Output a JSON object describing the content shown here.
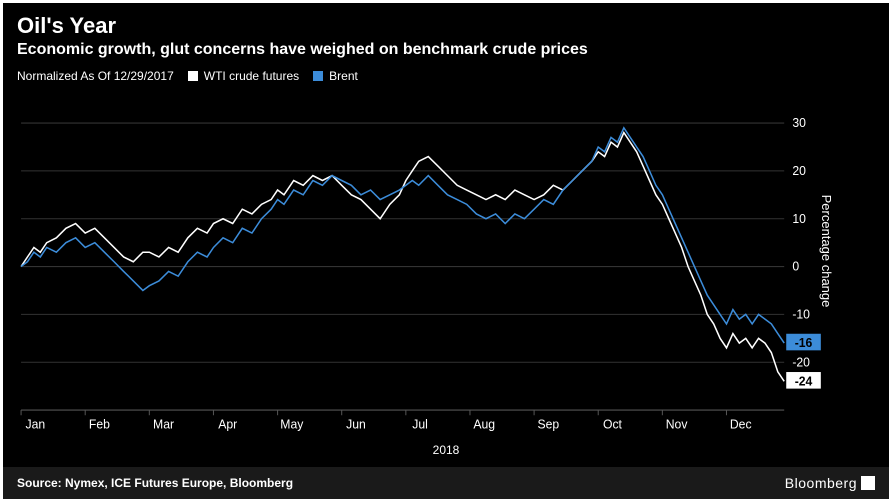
{
  "header": {
    "title": "Oil's Year",
    "subtitle": "Economic growth, glut concerns have weighed on benchmark crude prices"
  },
  "legend": {
    "normalized_label": "Normalized As Of 12/29/2017",
    "series": [
      {
        "key": "wti",
        "label": "WTI crude futures",
        "color": "#ffffff"
      },
      {
        "key": "brent",
        "label": "Brent",
        "color": "#3c8cd9"
      }
    ]
  },
  "chart": {
    "type": "line",
    "background_color": "#000000",
    "grid_color": "#333333",
    "axis_color": "#555555",
    "line_width": 1.5,
    "ylabel": "Percentage change",
    "xlabel": "2018",
    "label_fontsize": 13,
    "tick_fontsize": 12,
    "ylim": [
      -30,
      35
    ],
    "yticks": [
      -20,
      -10,
      0,
      10,
      20,
      30
    ],
    "xticks": [
      "Jan",
      "Feb",
      "Mar",
      "Apr",
      "May",
      "Jun",
      "Jul",
      "Aug",
      "Sep",
      "Oct",
      "Nov",
      "Dec"
    ],
    "x_domain": [
      0,
      11.9
    ],
    "end_values": {
      "wti": -24,
      "brent": -16
    },
    "end_flag_bg": {
      "wti": "#ffffff",
      "brent": "#3c8cd9"
    },
    "series_data": {
      "wti": [
        [
          0.0,
          0
        ],
        [
          0.1,
          2
        ],
        [
          0.2,
          4
        ],
        [
          0.3,
          3
        ],
        [
          0.4,
          5
        ],
        [
          0.55,
          6
        ],
        [
          0.7,
          8
        ],
        [
          0.85,
          9
        ],
        [
          1.0,
          7
        ],
        [
          1.15,
          8
        ],
        [
          1.3,
          6
        ],
        [
          1.45,
          4
        ],
        [
          1.6,
          2
        ],
        [
          1.75,
          1
        ],
        [
          1.9,
          3
        ],
        [
          2.0,
          3
        ],
        [
          2.15,
          2
        ],
        [
          2.3,
          4
        ],
        [
          2.45,
          3
        ],
        [
          2.6,
          6
        ],
        [
          2.75,
          8
        ],
        [
          2.9,
          7
        ],
        [
          3.0,
          9
        ],
        [
          3.15,
          10
        ],
        [
          3.3,
          9
        ],
        [
          3.45,
          12
        ],
        [
          3.6,
          11
        ],
        [
          3.75,
          13
        ],
        [
          3.9,
          14
        ],
        [
          4.0,
          16
        ],
        [
          4.1,
          15
        ],
        [
          4.25,
          18
        ],
        [
          4.4,
          17
        ],
        [
          4.55,
          19
        ],
        [
          4.7,
          18
        ],
        [
          4.85,
          19
        ],
        [
          5.0,
          17
        ],
        [
          5.15,
          15
        ],
        [
          5.3,
          14
        ],
        [
          5.45,
          12
        ],
        [
          5.6,
          10
        ],
        [
          5.75,
          13
        ],
        [
          5.9,
          15
        ],
        [
          6.0,
          18
        ],
        [
          6.1,
          20
        ],
        [
          6.2,
          22
        ],
        [
          6.35,
          23
        ],
        [
          6.5,
          21
        ],
        [
          6.65,
          19
        ],
        [
          6.8,
          17
        ],
        [
          6.95,
          16
        ],
        [
          7.1,
          15
        ],
        [
          7.25,
          14
        ],
        [
          7.4,
          15
        ],
        [
          7.55,
          14
        ],
        [
          7.7,
          16
        ],
        [
          7.85,
          15
        ],
        [
          8.0,
          14
        ],
        [
          8.15,
          15
        ],
        [
          8.3,
          17
        ],
        [
          8.45,
          16
        ],
        [
          8.6,
          18
        ],
        [
          8.75,
          20
        ],
        [
          8.9,
          22
        ],
        [
          9.0,
          24
        ],
        [
          9.1,
          23
        ],
        [
          9.2,
          26
        ],
        [
          9.3,
          25
        ],
        [
          9.4,
          28
        ],
        [
          9.5,
          26
        ],
        [
          9.6,
          24
        ],
        [
          9.7,
          21
        ],
        [
          9.8,
          18
        ],
        [
          9.9,
          15
        ],
        [
          10.0,
          13
        ],
        [
          10.1,
          10
        ],
        [
          10.2,
          7
        ],
        [
          10.3,
          4
        ],
        [
          10.4,
          0
        ],
        [
          10.5,
          -3
        ],
        [
          10.6,
          -6
        ],
        [
          10.7,
          -10
        ],
        [
          10.8,
          -12
        ],
        [
          10.9,
          -15
        ],
        [
          11.0,
          -17
        ],
        [
          11.1,
          -14
        ],
        [
          11.2,
          -16
        ],
        [
          11.3,
          -15
        ],
        [
          11.4,
          -17
        ],
        [
          11.5,
          -15
        ],
        [
          11.6,
          -16
        ],
        [
          11.7,
          -18
        ],
        [
          11.8,
          -22
        ],
        [
          11.9,
          -24
        ]
      ],
      "brent": [
        [
          0.0,
          0
        ],
        [
          0.1,
          1
        ],
        [
          0.2,
          3
        ],
        [
          0.3,
          2
        ],
        [
          0.4,
          4
        ],
        [
          0.55,
          3
        ],
        [
          0.7,
          5
        ],
        [
          0.85,
          6
        ],
        [
          1.0,
          4
        ],
        [
          1.15,
          5
        ],
        [
          1.3,
          3
        ],
        [
          1.45,
          1
        ],
        [
          1.6,
          -1
        ],
        [
          1.75,
          -3
        ],
        [
          1.9,
          -5
        ],
        [
          2.0,
          -4
        ],
        [
          2.15,
          -3
        ],
        [
          2.3,
          -1
        ],
        [
          2.45,
          -2
        ],
        [
          2.6,
          1
        ],
        [
          2.75,
          3
        ],
        [
          2.9,
          2
        ],
        [
          3.0,
          4
        ],
        [
          3.15,
          6
        ],
        [
          3.3,
          5
        ],
        [
          3.45,
          8
        ],
        [
          3.6,
          7
        ],
        [
          3.75,
          10
        ],
        [
          3.9,
          12
        ],
        [
          4.0,
          14
        ],
        [
          4.1,
          13
        ],
        [
          4.25,
          16
        ],
        [
          4.4,
          15
        ],
        [
          4.55,
          18
        ],
        [
          4.7,
          17
        ],
        [
          4.85,
          19
        ],
        [
          5.0,
          18
        ],
        [
          5.15,
          17
        ],
        [
          5.3,
          15
        ],
        [
          5.45,
          16
        ],
        [
          5.6,
          14
        ],
        [
          5.75,
          15
        ],
        [
          5.9,
          16
        ],
        [
          6.0,
          17
        ],
        [
          6.1,
          18
        ],
        [
          6.2,
          17
        ],
        [
          6.35,
          19
        ],
        [
          6.5,
          17
        ],
        [
          6.65,
          15
        ],
        [
          6.8,
          14
        ],
        [
          6.95,
          13
        ],
        [
          7.1,
          11
        ],
        [
          7.25,
          10
        ],
        [
          7.4,
          11
        ],
        [
          7.55,
          9
        ],
        [
          7.7,
          11
        ],
        [
          7.85,
          10
        ],
        [
          8.0,
          12
        ],
        [
          8.15,
          14
        ],
        [
          8.3,
          13
        ],
        [
          8.45,
          16
        ],
        [
          8.6,
          18
        ],
        [
          8.75,
          20
        ],
        [
          8.9,
          22
        ],
        [
          9.0,
          25
        ],
        [
          9.1,
          24
        ],
        [
          9.2,
          27
        ],
        [
          9.3,
          26
        ],
        [
          9.4,
          29
        ],
        [
          9.5,
          27
        ],
        [
          9.6,
          25
        ],
        [
          9.7,
          23
        ],
        [
          9.8,
          20
        ],
        [
          9.9,
          17
        ],
        [
          10.0,
          15
        ],
        [
          10.1,
          12
        ],
        [
          10.2,
          9
        ],
        [
          10.3,
          6
        ],
        [
          10.4,
          3
        ],
        [
          10.5,
          0
        ],
        [
          10.6,
          -3
        ],
        [
          10.7,
          -6
        ],
        [
          10.8,
          -8
        ],
        [
          10.9,
          -10
        ],
        [
          11.0,
          -12
        ],
        [
          11.1,
          -9
        ],
        [
          11.2,
          -11
        ],
        [
          11.3,
          -10
        ],
        [
          11.4,
          -12
        ],
        [
          11.5,
          -10
        ],
        [
          11.6,
          -11
        ],
        [
          11.7,
          -12
        ],
        [
          11.8,
          -14
        ],
        [
          11.9,
          -16
        ]
      ]
    }
  },
  "footer": {
    "source": "Source: Nymex, ICE Futures Europe, Bloomberg",
    "brand": "Bloomberg"
  }
}
